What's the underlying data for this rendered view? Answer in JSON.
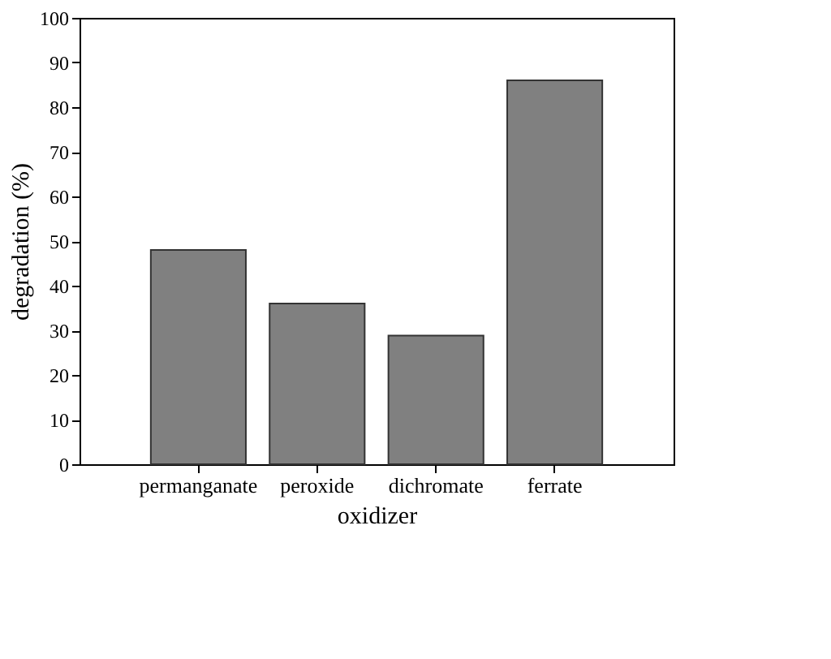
{
  "chart_data": {
    "type": "bar",
    "xlabel": "oxidizer",
    "ylabel": "degradation (%)",
    "categories": [
      "permanganate",
      "peroxide",
      "dichromate",
      "ferrate"
    ],
    "values": [
      48,
      36,
      28.8,
      86
    ],
    "color": "#808080",
    "ylim": [
      0,
      100
    ],
    "yticks": [
      0,
      10,
      20,
      30,
      40,
      50,
      60,
      70,
      80,
      90,
      100
    ],
    "grid": false
  }
}
